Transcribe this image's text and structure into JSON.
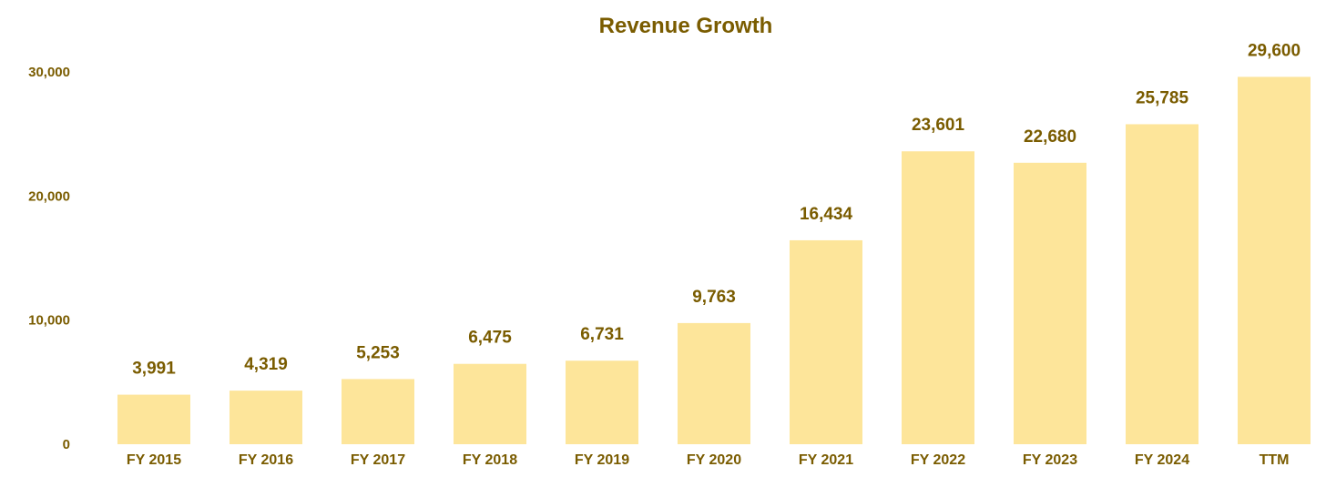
{
  "chart_data": {
    "type": "bar",
    "title": "Revenue Growth",
    "xlabel": "",
    "ylabel": "",
    "categories": [
      "FY 2015",
      "FY 2016",
      "FY 2017",
      "FY 2018",
      "FY 2019",
      "FY 2020",
      "FY 2021",
      "FY 2022",
      "FY 2023",
      "FY 2024",
      "TTM"
    ],
    "values": [
      3991,
      4319,
      5253,
      6475,
      6731,
      9763,
      16434,
      23601,
      22680,
      25785,
      29600
    ],
    "data_labels": [
      "3,991",
      "4,319",
      "5,253",
      "6,475",
      "6,731",
      "9,763",
      "16,434",
      "23,601",
      "22,680",
      "25,785",
      "29,600"
    ],
    "ylim": [
      0,
      30000
    ],
    "yticks": [
      0,
      10000,
      20000,
      30000
    ],
    "ytick_labels": [
      "0",
      "10,000",
      "20,000",
      "30,000"
    ],
    "grid": false,
    "legend": "none",
    "colors": {
      "bar": "#FDE59A",
      "text": "#7A5C00"
    }
  }
}
